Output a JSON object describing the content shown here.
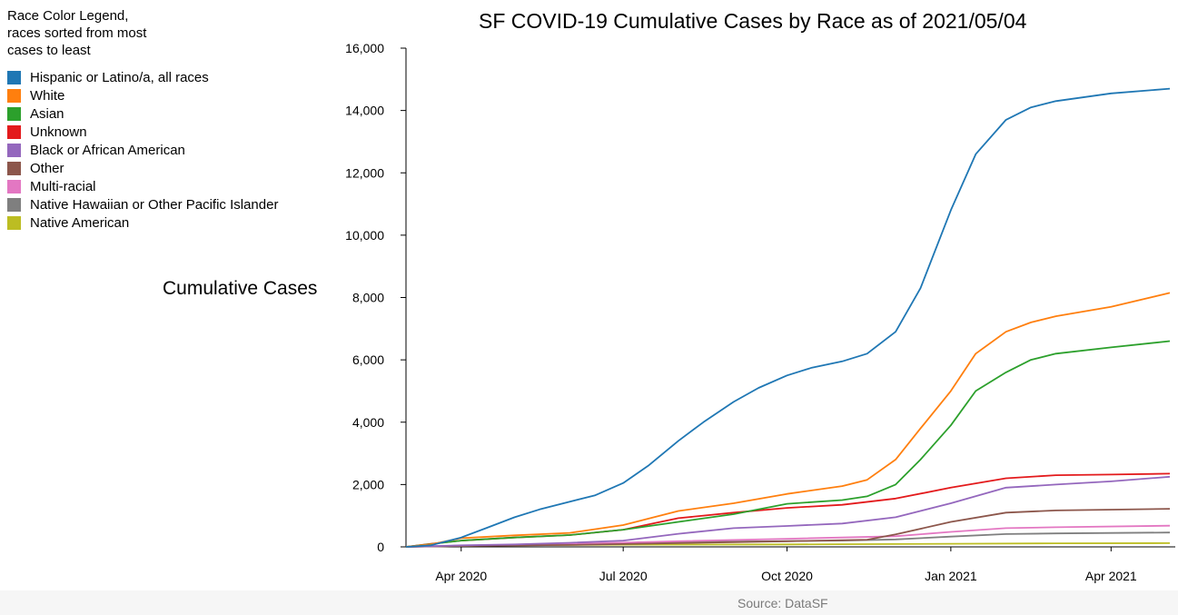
{
  "legend": {
    "title": "Race Color Legend, races sorted from most cases to least",
    "items": [
      {
        "label": "Hispanic or Latino/a, all races",
        "color": "#1f77b4"
      },
      {
        "label": "White",
        "color": "#ff7f0e"
      },
      {
        "label": "Asian",
        "color": "#2ca02c"
      },
      {
        "label": "Unknown",
        "color": "#e31a1c"
      },
      {
        "label": "Black or African American",
        "color": "#9467bd"
      },
      {
        "label": "Other",
        "color": "#8c564b"
      },
      {
        "label": "Multi-racial",
        "color": "#e377c2"
      },
      {
        "label": "Native Hawaiian or Other Pacific Islander",
        "color": "#7f7f7f"
      },
      {
        "label": "Native American",
        "color": "#bcbd22"
      }
    ]
  },
  "source": "Source: DataSF",
  "chart_data": {
    "type": "line",
    "title": "SF COVID-19 Cumulative Cases by Race as of 2021/05/04",
    "xlabel": "",
    "ylabel": "Cumulative Cases",
    "ylim": [
      0,
      16000
    ],
    "xlim": [
      "2020-03-01",
      "2021-05-04"
    ],
    "yticks": [
      0,
      2000,
      4000,
      6000,
      8000,
      10000,
      12000,
      14000,
      16000
    ],
    "ytick_labels": [
      "0",
      "2,000",
      "4,000",
      "6,000",
      "8,000",
      "10,000",
      "12,000",
      "14,000",
      "16,000"
    ],
    "xticks": [
      "2020-04-01",
      "2020-07-01",
      "2020-10-01",
      "2021-01-01",
      "2021-04-01"
    ],
    "xtick_labels": [
      "Apr 2020",
      "Jul 2020",
      "Oct 2020",
      "Jan 2021",
      "Apr 2021"
    ],
    "grid": false,
    "legend_placement": "left",
    "series": [
      {
        "name": "Hispanic or Latino/a, all races",
        "color": "#1f77b4",
        "points": [
          [
            "2020-03-01",
            0
          ],
          [
            "2020-03-15",
            50
          ],
          [
            "2020-04-01",
            300
          ],
          [
            "2020-04-15",
            600
          ],
          [
            "2020-05-01",
            950
          ],
          [
            "2020-05-15",
            1200
          ],
          [
            "2020-06-01",
            1450
          ],
          [
            "2020-06-15",
            1650
          ],
          [
            "2020-07-01",
            2050
          ],
          [
            "2020-07-15",
            2600
          ],
          [
            "2020-08-01",
            3400
          ],
          [
            "2020-08-15",
            4000
          ],
          [
            "2020-09-01",
            4650
          ],
          [
            "2020-09-15",
            5100
          ],
          [
            "2020-10-01",
            5500
          ],
          [
            "2020-10-15",
            5750
          ],
          [
            "2020-11-01",
            5950
          ],
          [
            "2020-11-15",
            6200
          ],
          [
            "2020-12-01",
            6900
          ],
          [
            "2020-12-15",
            8300
          ],
          [
            "2021-01-01",
            10800
          ],
          [
            "2021-01-15",
            12600
          ],
          [
            "2021-02-01",
            13700
          ],
          [
            "2021-02-15",
            14100
          ],
          [
            "2021-03-01",
            14300
          ],
          [
            "2021-04-01",
            14550
          ],
          [
            "2021-05-04",
            14700
          ]
        ]
      },
      {
        "name": "White",
        "color": "#ff7f0e",
        "points": [
          [
            "2020-03-01",
            0
          ],
          [
            "2020-03-15",
            80
          ],
          [
            "2020-04-01",
            280
          ],
          [
            "2020-05-01",
            370
          ],
          [
            "2020-06-01",
            450
          ],
          [
            "2020-07-01",
            700
          ],
          [
            "2020-08-01",
            1150
          ],
          [
            "2020-09-01",
            1400
          ],
          [
            "2020-10-01",
            1700
          ],
          [
            "2020-11-01",
            1950
          ],
          [
            "2020-11-15",
            2150
          ],
          [
            "2020-12-01",
            2800
          ],
          [
            "2020-12-15",
            3800
          ],
          [
            "2021-01-01",
            5000
          ],
          [
            "2021-01-15",
            6200
          ],
          [
            "2021-02-01",
            6900
          ],
          [
            "2021-02-15",
            7200
          ],
          [
            "2021-03-01",
            7400
          ],
          [
            "2021-04-01",
            7700
          ],
          [
            "2021-05-04",
            8150
          ]
        ]
      },
      {
        "name": "Asian",
        "color": "#2ca02c",
        "points": [
          [
            "2020-03-01",
            0
          ],
          [
            "2020-04-01",
            200
          ],
          [
            "2020-05-01",
            300
          ],
          [
            "2020-06-01",
            380
          ],
          [
            "2020-07-01",
            550
          ],
          [
            "2020-08-01",
            800
          ],
          [
            "2020-09-01",
            1050
          ],
          [
            "2020-10-01",
            1380
          ],
          [
            "2020-11-01",
            1500
          ],
          [
            "2020-11-15",
            1620
          ],
          [
            "2020-12-01",
            2000
          ],
          [
            "2020-12-15",
            2800
          ],
          [
            "2021-01-01",
            3900
          ],
          [
            "2021-01-15",
            5000
          ],
          [
            "2021-02-01",
            5600
          ],
          [
            "2021-02-15",
            6000
          ],
          [
            "2021-03-01",
            6200
          ],
          [
            "2021-04-01",
            6400
          ],
          [
            "2021-05-04",
            6600
          ]
        ]
      },
      {
        "name": "Unknown",
        "color": "#e31a1c",
        "points": [
          [
            "2020-03-01",
            0
          ],
          [
            "2020-03-15",
            100
          ],
          [
            "2020-04-01",
            200
          ],
          [
            "2020-05-01",
            300
          ],
          [
            "2020-06-01",
            380
          ],
          [
            "2020-07-01",
            550
          ],
          [
            "2020-08-01",
            920
          ],
          [
            "2020-09-01",
            1100
          ],
          [
            "2020-10-01",
            1250
          ],
          [
            "2020-11-01",
            1350
          ],
          [
            "2020-12-01",
            1550
          ],
          [
            "2021-01-01",
            1900
          ],
          [
            "2021-02-01",
            2200
          ],
          [
            "2021-03-01",
            2300
          ],
          [
            "2021-04-01",
            2320
          ],
          [
            "2021-05-04",
            2350
          ]
        ]
      },
      {
        "name": "Black or African American",
        "color": "#9467bd",
        "points": [
          [
            "2020-03-01",
            0
          ],
          [
            "2020-04-01",
            50
          ],
          [
            "2020-05-01",
            80
          ],
          [
            "2020-06-01",
            130
          ],
          [
            "2020-07-01",
            200
          ],
          [
            "2020-08-01",
            420
          ],
          [
            "2020-09-01",
            600
          ],
          [
            "2020-10-01",
            670
          ],
          [
            "2020-11-01",
            750
          ],
          [
            "2020-12-01",
            950
          ],
          [
            "2021-01-01",
            1400
          ],
          [
            "2021-02-01",
            1900
          ],
          [
            "2021-03-01",
            2000
          ],
          [
            "2021-04-01",
            2100
          ],
          [
            "2021-05-04",
            2250
          ]
        ]
      },
      {
        "name": "Other",
        "color": "#8c564b",
        "points": [
          [
            "2020-03-01",
            0
          ],
          [
            "2020-04-01",
            30
          ],
          [
            "2020-06-01",
            60
          ],
          [
            "2020-08-01",
            120
          ],
          [
            "2020-10-01",
            180
          ],
          [
            "2020-11-15",
            230
          ],
          [
            "2020-12-01",
            400
          ],
          [
            "2021-01-01",
            800
          ],
          [
            "2021-02-01",
            1100
          ],
          [
            "2021-03-01",
            1170
          ],
          [
            "2021-05-04",
            1220
          ]
        ]
      },
      {
        "name": "Multi-racial",
        "color": "#e377c2",
        "points": [
          [
            "2020-03-01",
            0
          ],
          [
            "2020-04-01",
            40
          ],
          [
            "2020-06-01",
            90
          ],
          [
            "2020-08-01",
            180
          ],
          [
            "2020-10-01",
            260
          ],
          [
            "2020-12-01",
            340
          ],
          [
            "2021-01-01",
            480
          ],
          [
            "2021-02-01",
            600
          ],
          [
            "2021-03-01",
            630
          ],
          [
            "2021-05-04",
            680
          ]
        ]
      },
      {
        "name": "Native Hawaiian or Other Pacific Islander",
        "color": "#7f7f7f",
        "points": [
          [
            "2020-03-01",
            0
          ],
          [
            "2020-05-01",
            60
          ],
          [
            "2020-07-01",
            120
          ],
          [
            "2020-09-01",
            170
          ],
          [
            "2020-11-01",
            200
          ],
          [
            "2020-12-01",
            240
          ],
          [
            "2021-01-01",
            330
          ],
          [
            "2021-02-01",
            410
          ],
          [
            "2021-03-01",
            430
          ],
          [
            "2021-05-04",
            460
          ]
        ]
      },
      {
        "name": "Native American",
        "color": "#bcbd22",
        "points": [
          [
            "2020-03-01",
            0
          ],
          [
            "2020-04-15",
            50
          ],
          [
            "2020-07-01",
            70
          ],
          [
            "2020-10-01",
            80
          ],
          [
            "2021-01-01",
            100
          ],
          [
            "2021-03-01",
            115
          ],
          [
            "2021-05-04",
            120
          ]
        ]
      }
    ]
  }
}
